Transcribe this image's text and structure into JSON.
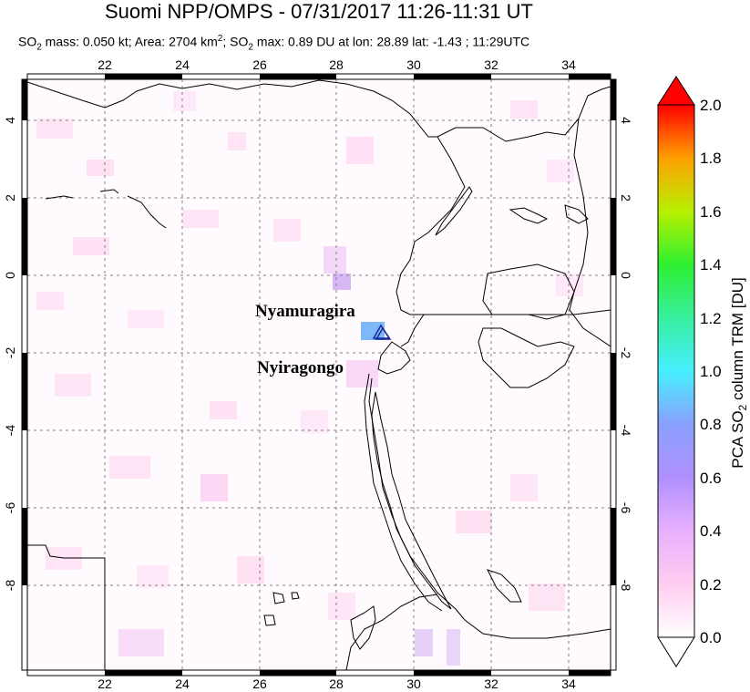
{
  "title": "Suomi NPP/OMPS - 07/31/2017 11:26-11:31 UT",
  "subtitle": {
    "so2_prefix": "SO",
    "sub2": "2",
    "mass_text": " mass: 0.050 kt; Area: 2704 km",
    "sup2": "2",
    "sep": "; SO",
    "max_text": " max: 0.89 DU at lon: 28.89 lat: -1.43 ; 11:29UTC"
  },
  "map": {
    "lon_ticks": [
      "22",
      "24",
      "26",
      "28",
      "30",
      "32",
      "34"
    ],
    "lat_ticks": [
      "4",
      "2",
      "0",
      "-2",
      "-4",
      "-6",
      "-8"
    ],
    "volcanoes": [
      {
        "name": "Nyamuragira",
        "lon": 29.2,
        "lat": -1.41
      },
      {
        "name": "Nyiragongo",
        "lon": 29.25,
        "lat": -1.52
      }
    ],
    "colors": {
      "coast": "#000000",
      "grid": "#808080",
      "volcano_marker": "#1a2a9a"
    }
  },
  "colorbar": {
    "label_prefix": "PCA SO",
    "label_sub": "2",
    "label_suffix": " column TRM [DU]",
    "ticks": [
      "0.0",
      "0.2",
      "0.4",
      "0.6",
      "0.8",
      "1.0",
      "1.2",
      "1.4",
      "1.6",
      "1.8",
      "2.0"
    ],
    "range": [
      0.0,
      2.0
    ],
    "colors": [
      "#ffffff",
      "#ffcdf0",
      "#c8a0ff",
      "#8aa0ff",
      "#46f0ff",
      "#2ef060",
      "#b8f000",
      "#ffe000",
      "#ff7a00",
      "#ff0000",
      "#e00000"
    ]
  }
}
